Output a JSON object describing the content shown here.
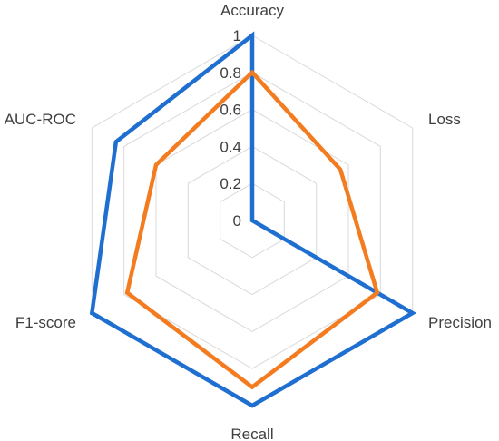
{
  "chart_data": {
    "type": "radar",
    "title": "",
    "axes": [
      "Accuracy",
      "Loss",
      "Precision",
      "Recall",
      "F1-score",
      "AUC-ROC"
    ],
    "ticks": [
      "0",
      "0.2",
      "0.4",
      "0.6",
      "0.8",
      "1"
    ],
    "rlim": [
      0,
      1
    ],
    "grid": true,
    "legend": "none",
    "series": [
      {
        "color": "#1f6fd1",
        "values": [
          1.0,
          0.0,
          1.0,
          1.0,
          1.0,
          0.85
        ]
      },
      {
        "color": "#f47c20",
        "values": [
          0.8,
          0.55,
          0.78,
          0.9,
          0.78,
          0.6
        ]
      }
    ]
  }
}
